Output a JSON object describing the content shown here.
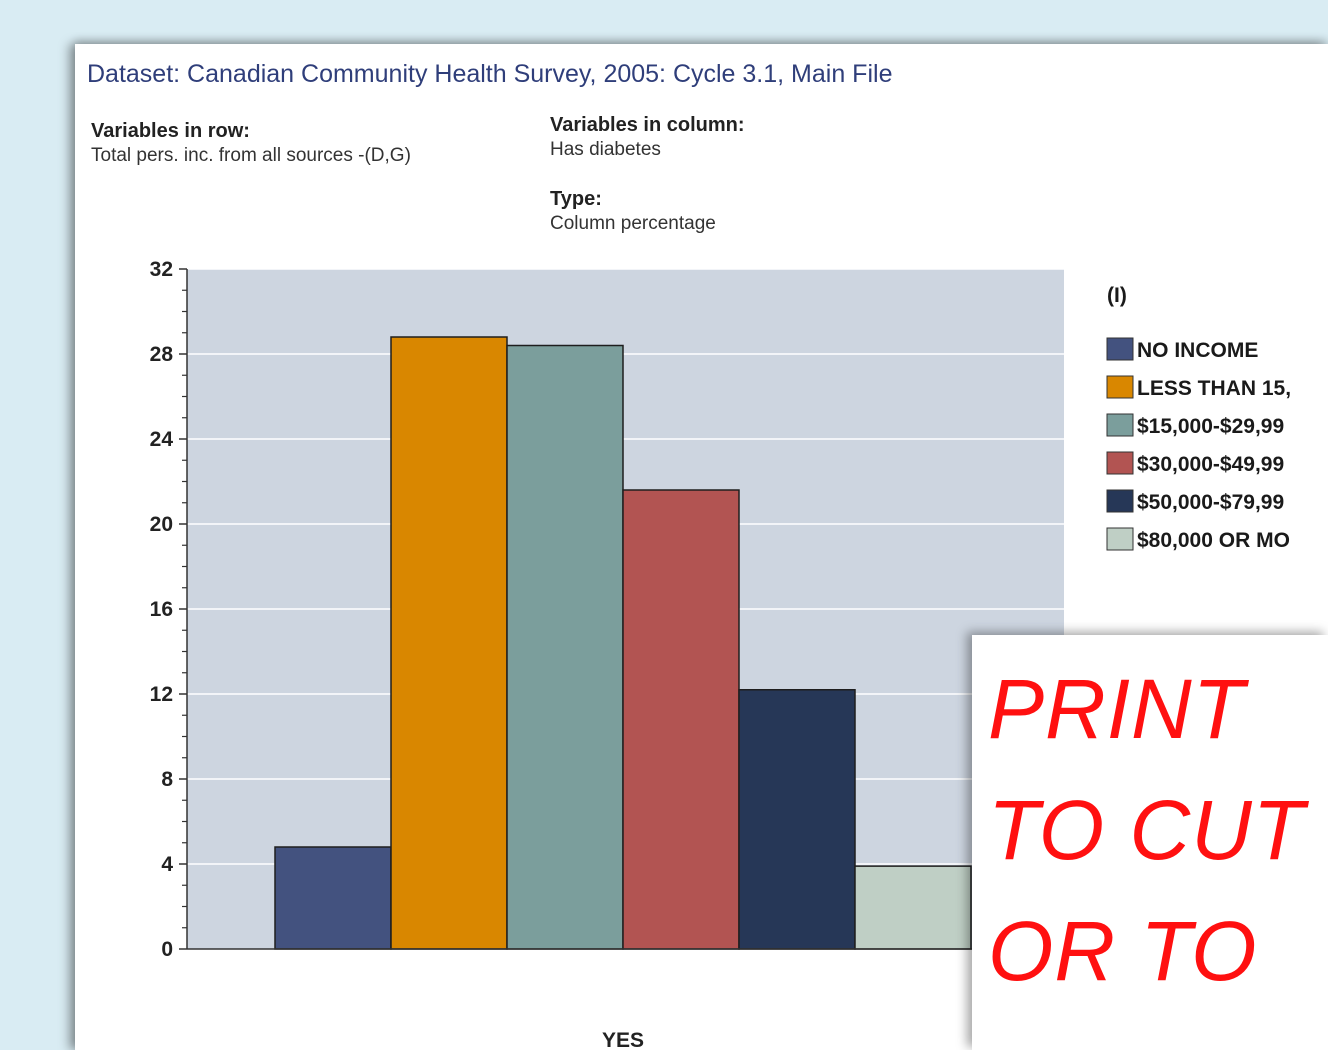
{
  "header": {
    "dataset_title": "Dataset: Canadian Community Health Survey, 2005: Cycle 3.1, Main File"
  },
  "meta": {
    "row_label": "Variables in row:",
    "row_value": "Total pers. inc. from all sources -(D,G)",
    "column_label": "Variables in column:",
    "column_value": "Has diabetes",
    "type_label": "Type:",
    "type_value": "Column percentage"
  },
  "overlay": {
    "lines": [
      "PRINT",
      "TO CUT",
      "OR TO"
    ]
  },
  "chart_data": {
    "type": "bar",
    "categories": [
      "YES"
    ],
    "series": [
      {
        "name": "NO INCOME",
        "values": [
          4.8
        ],
        "color": "#43527f"
      },
      {
        "name": "LESS THAN 15,",
        "values": [
          28.8
        ],
        "color": "#d98700"
      },
      {
        "name": "$15,000-$29,99",
        "values": [
          28.4
        ],
        "color": "#7b9e9c"
      },
      {
        "name": "$30,000-$49,99",
        "values": [
          21.6
        ],
        "color": "#b25452"
      },
      {
        "name": "$50,000-$79,99",
        "values": [
          12.2
        ],
        "color": "#263757"
      },
      {
        "name": "$80,000 OR MO",
        "values": [
          3.9
        ],
        "color": "#bfcfc5"
      }
    ],
    "legend_title": "(I)",
    "ylim": [
      0,
      32
    ],
    "yticks": [
      0,
      4,
      8,
      12,
      16,
      20,
      24,
      28,
      32
    ],
    "grid": true,
    "legend_position": "right",
    "plot_background": "#cdd5e0"
  }
}
